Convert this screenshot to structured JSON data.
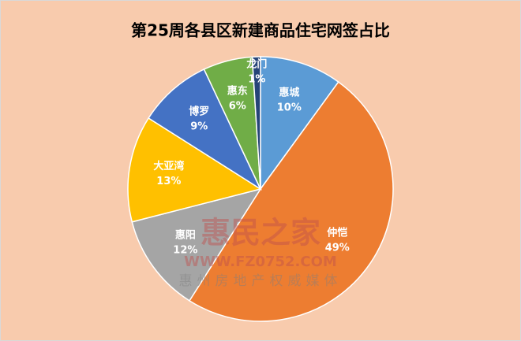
{
  "chart_data": {
    "type": "pie",
    "title": "第25周各县区新建商品住宅网签占比",
    "categories": [
      "惠城",
      "仲恺",
      "惠阳",
      "大亚湾",
      "博罗",
      "惠东",
      "龙门"
    ],
    "values": [
      10,
      49,
      12,
      13,
      9,
      6,
      1
    ],
    "value_labels": [
      "10%",
      "49%",
      "12%",
      "13%",
      "9%",
      "6%",
      "1%"
    ],
    "colors": [
      "#5b9bd5",
      "#ed7d31",
      "#a5a5a5",
      "#ffc000",
      "#4472c4",
      "#70ad47",
      "#264478"
    ],
    "watermark": [
      "惠民之家",
      "WWW.FZ0752.COM",
      "惠州房地产权威媒体"
    ]
  }
}
